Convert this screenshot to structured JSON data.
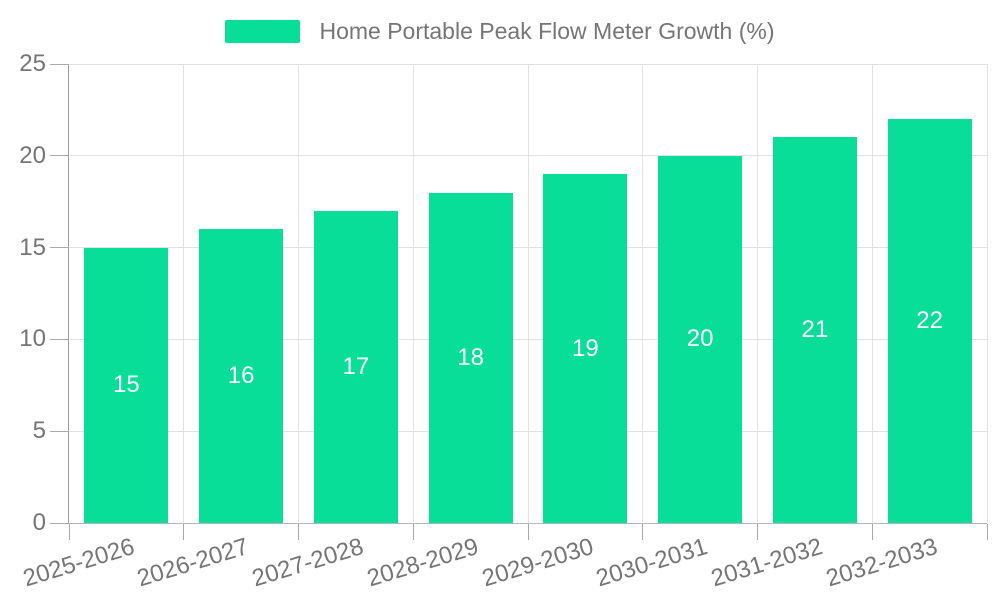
{
  "chart_data": {
    "type": "bar",
    "title": "Home Portable Peak Flow Meter Growth (%)",
    "legend": {
      "entries": [
        "Home Portable Peak Flow Meter Growth (%)"
      ],
      "position": "top"
    },
    "categories": [
      "2025-2026",
      "2026-2027",
      "2027-2028",
      "2028-2029",
      "2029-2030",
      "2030-2031",
      "2031-2032",
      "2032-2033"
    ],
    "values": [
      15,
      16,
      17,
      18,
      19,
      20,
      21,
      22
    ],
    "value_labels": [
      "15",
      "16",
      "17",
      "18",
      "19",
      "20",
      "21",
      "22"
    ],
    "xlabel": "",
    "ylabel": "",
    "ylim": [
      0,
      25
    ],
    "yticks": [
      0,
      5,
      10,
      15,
      20,
      25
    ],
    "grid": true,
    "x_label_rotation_deg": -17,
    "colors": {
      "bar": "#08de97",
      "value_text": "#ffffff",
      "title_text": "#757575",
      "axis_text": "#757575",
      "grid": "#e2e2e2",
      "axis_line": "#9a9a9a",
      "axis_line_bottom": "#b5b5b5",
      "tick": "#a8a8a8",
      "background": "#ffffff"
    }
  }
}
